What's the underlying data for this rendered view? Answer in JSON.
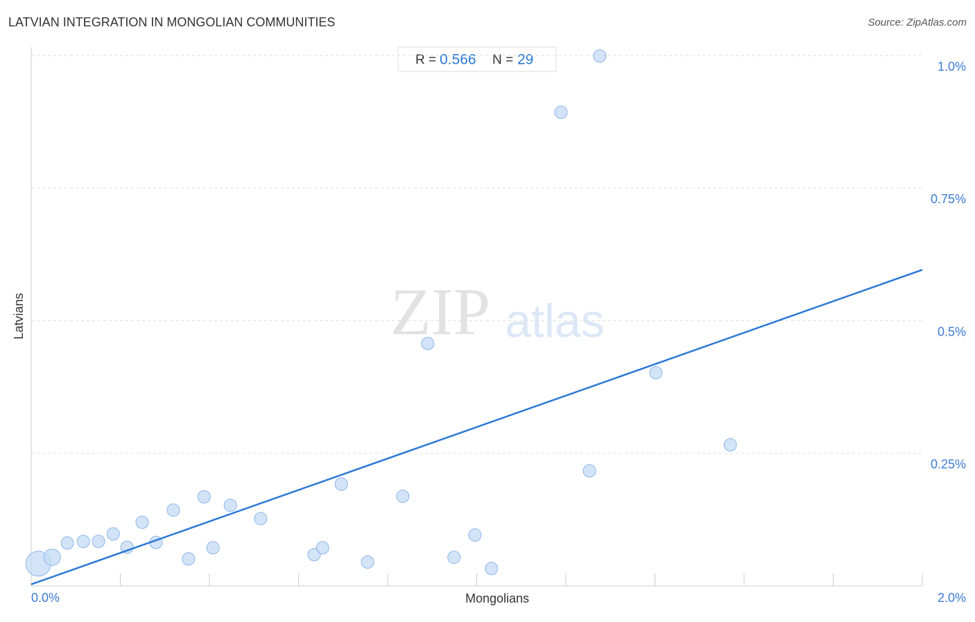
{
  "chart_data": {
    "type": "scatter",
    "title": "LATVIAN INTEGRATION IN MONGOLIAN COMMUNITIES",
    "source": "Source: ZipAtlas.com",
    "watermark": [
      "ZIP",
      "atlas"
    ],
    "x_label": "Mongolians",
    "y_label": "Latvians",
    "stats": {
      "r_label": "R =",
      "r": 0.566,
      "n_label": "N =",
      "n": 29
    },
    "x": [
      0.016,
      0.047,
      0.081,
      0.117,
      0.151,
      0.184,
      0.215,
      0.249,
      0.28,
      0.319,
      0.353,
      0.388,
      0.408,
      0.447,
      0.515,
      0.635,
      0.654,
      0.696,
      0.755,
      0.834,
      0.89,
      0.949,
      0.996,
      1.033,
      1.189,
      1.253,
      1.276,
      1.402,
      1.569
    ],
    "y": [
      0.042,
      0.054,
      0.081,
      0.084,
      0.084,
      0.098,
      0.073,
      0.12,
      0.082,
      0.143,
      0.051,
      0.168,
      0.072,
      0.152,
      0.127,
      0.059,
      0.072,
      0.192,
      0.045,
      0.169,
      0.457,
      0.054,
      0.096,
      0.033,
      0.893,
      0.217,
      0.999,
      0.402,
      0.266
    ],
    "sizes": [
      18,
      12,
      9,
      9,
      9,
      9,
      9,
      9,
      9,
      9,
      9,
      9,
      9,
      9,
      9,
      9,
      9,
      9,
      9,
      9,
      9,
      9,
      9,
      9,
      9,
      9,
      9,
      9,
      9
    ],
    "color": "#c6dbf5",
    "trendline": {
      "x": [
        0,
        2
      ],
      "y": [
        0.003,
        0.596
      ],
      "color": "#2a78d6"
    },
    "xlim": [
      0,
      2
    ],
    "ylim": [
      0,
      1.0
    ],
    "xticks": [
      {
        "value": 0,
        "label": "0.0%"
      },
      {
        "value": 2,
        "label": "2.0%"
      }
    ],
    "xminor_ticks": [
      0.2,
      0.4,
      0.6,
      0.8,
      1.0,
      1.2,
      1.4,
      1.6,
      1.8,
      2.0
    ],
    "yticks": [
      {
        "value": 0.25,
        "label": "0.25%"
      },
      {
        "value": 0.5,
        "label": "0.5%"
      },
      {
        "value": 0.75,
        "label": "0.75%"
      },
      {
        "value": 1.0,
        "label": "1.0%"
      }
    ],
    "grid": true
  }
}
